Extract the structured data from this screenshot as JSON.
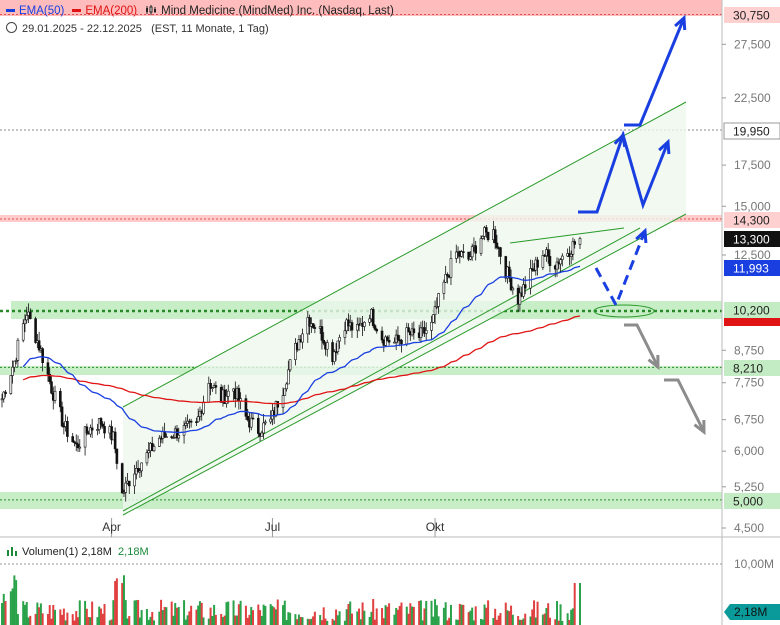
{
  "legend": {
    "ema50_label": "EMA(50)",
    "ema200_label": "EMA(200)",
    "instrument": "Mind Medicine (MindMed) Inc. (Nasdaq, Last)"
  },
  "subtitle": {
    "range": "29.01.2025 - 22.12.2025",
    "info": "(EST, 11 Monate, 1 Tag)"
  },
  "volume_legend": {
    "label": "Volumen(1)",
    "value1": "2,18M",
    "value2": "2,18M"
  },
  "colors": {
    "ema50": "#1a3fe0",
    "ema200": "#e01414",
    "support_zone": "#b6e8b6",
    "resistance_zone": "#ffb8b8",
    "channel": "#2a9a2a",
    "arrow_bull": "#1a3fe0",
    "arrow_bear": "#8c8c8c",
    "volume_up": "#2aa24a",
    "volume_down": "#e04040"
  },
  "chart_data": {
    "type": "candlestick",
    "x_tick_labels": [
      "Apr",
      "Jul",
      "Okt"
    ],
    "y_tick_labels": [
      "27,500",
      "22,500",
      "17,500",
      "15,000",
      "12,500",
      "8,750",
      "7,750",
      "6,750",
      "6,000",
      "5,250",
      "4,500"
    ],
    "y_scale": "log",
    "ylim": [
      4.5,
      31.5
    ],
    "x_range": [
      "2025-01-29",
      "2025-12-22"
    ],
    "price_levels": [
      {
        "value": 30.75,
        "label": "30,750",
        "style": "resistance-zone"
      },
      {
        "value": 19.95,
        "label": "19,950",
        "style": "dotted-line"
      },
      {
        "value": 14.3,
        "label": "14,300",
        "style": "resistance-zone"
      },
      {
        "value": 13.3,
        "label": "13,300",
        "style": "last-price"
      },
      {
        "value": 11.993,
        "label": "11,993",
        "style": "ema50"
      },
      {
        "value": 10.2,
        "label": "10,200",
        "style": "support-zone"
      },
      {
        "value": 8.21,
        "label": "8,210",
        "style": "support-zone"
      },
      {
        "value": 5.0,
        "label": "5,000",
        "style": "support-zone"
      }
    ],
    "ema200_last": 10.03,
    "price_close_series": [
      {
        "date": "2025-01-29",
        "close": 7.3
      },
      {
        "date": "2025-02-05",
        "close": 8.4
      },
      {
        "date": "2025-02-12",
        "close": 10.1
      },
      {
        "date": "2025-02-19",
        "close": 8.9
      },
      {
        "date": "2025-02-26",
        "close": 7.6
      },
      {
        "date": "2025-03-05",
        "close": 6.6
      },
      {
        "date": "2025-03-12",
        "close": 6.1
      },
      {
        "date": "2025-03-19",
        "close": 6.5
      },
      {
        "date": "2025-03-26",
        "close": 6.7
      },
      {
        "date": "2025-04-02",
        "close": 6.3
      },
      {
        "date": "2025-04-07",
        "close": 5.1
      },
      {
        "date": "2025-04-14",
        "close": 5.6
      },
      {
        "date": "2025-04-21",
        "close": 5.9
      },
      {
        "date": "2025-04-28",
        "close": 6.3
      },
      {
        "date": "2025-05-05",
        "close": 6.4
      },
      {
        "date": "2025-05-12",
        "close": 6.5
      },
      {
        "date": "2025-05-19",
        "close": 6.6
      },
      {
        "date": "2025-05-26",
        "close": 7.8
      },
      {
        "date": "2025-06-02",
        "close": 7.3
      },
      {
        "date": "2025-06-09",
        "close": 7.6
      },
      {
        "date": "2025-06-16",
        "close": 6.8
      },
      {
        "date": "2025-06-23",
        "close": 6.5
      },
      {
        "date": "2025-06-30",
        "close": 6.7
      },
      {
        "date": "2025-07-07",
        "close": 7.6
      },
      {
        "date": "2025-07-14",
        "close": 8.8
      },
      {
        "date": "2025-07-21",
        "close": 9.9
      },
      {
        "date": "2025-07-28",
        "close": 9.4
      },
      {
        "date": "2025-08-04",
        "close": 8.6
      },
      {
        "date": "2025-08-11",
        "close": 9.7
      },
      {
        "date": "2025-08-18",
        "close": 9.4
      },
      {
        "date": "2025-08-25",
        "close": 10.1
      },
      {
        "date": "2025-09-01",
        "close": 9.2
      },
      {
        "date": "2025-09-08",
        "close": 9.0
      },
      {
        "date": "2025-09-15",
        "close": 9.3
      },
      {
        "date": "2025-09-22",
        "close": 9.2
      },
      {
        "date": "2025-09-29",
        "close": 9.6
      },
      {
        "date": "2025-10-06",
        "close": 11.2
      },
      {
        "date": "2025-10-13",
        "close": 12.6
      },
      {
        "date": "2025-10-20",
        "close": 12.3
      },
      {
        "date": "2025-10-27",
        "close": 13.4
      },
      {
        "date": "2025-11-03",
        "close": 13.6
      },
      {
        "date": "2025-11-10",
        "close": 11.8
      },
      {
        "date": "2025-11-17",
        "close": 10.6
      },
      {
        "date": "2025-11-24",
        "close": 11.6
      },
      {
        "date": "2025-12-01",
        "close": 12.6
      },
      {
        "date": "2025-12-08",
        "close": 12.1
      },
      {
        "date": "2025-12-15",
        "close": 12.7
      },
      {
        "date": "2025-12-22",
        "close": 13.3
      }
    ],
    "volume_tick_label": "10,00M",
    "volume_last": "2,18M"
  }
}
